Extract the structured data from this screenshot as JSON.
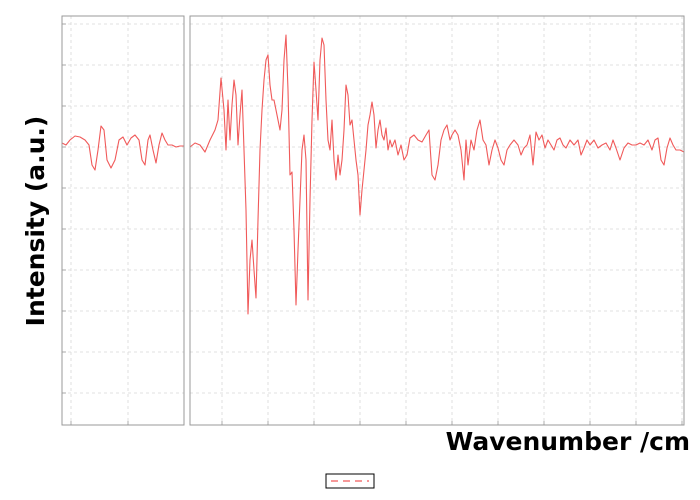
{
  "chart_data": [
    {
      "type": "line",
      "ylabel": "Intensity (a.u.)",
      "xlim": [
        0,
        122
      ],
      "xticks": [
        9,
        66
      ],
      "ylim": [
        0,
        409
      ],
      "yticks": [
        32,
        73,
        114,
        155,
        196,
        237,
        278,
        319,
        360,
        401
      ],
      "grid": true,
      "x": [
        0,
        4,
        8,
        13,
        18,
        23,
        27,
        30,
        33,
        36,
        39,
        42,
        45,
        49,
        53,
        57,
        61,
        65,
        69,
        73,
        77,
        80,
        83,
        86,
        88,
        91,
        94,
        97,
        100,
        103,
        106,
        110,
        114,
        118,
        122
      ],
      "series": [
        {
          "color": "#f05a5a",
          "values": [
            282,
            280,
            285,
            289,
            288,
            285,
            280,
            260,
            255,
            275,
            299,
            295,
            265,
            257,
            265,
            285,
            288,
            280,
            287,
            290,
            285,
            265,
            260,
            285,
            290,
            275,
            262,
            280,
            292,
            285,
            280,
            280,
            278,
            279,
            279
          ]
        }
      ]
    },
    {
      "type": "line",
      "xlabel": "Wavenumber /cm",
      "xlim": [
        0,
        494
      ],
      "xticks": [
        32,
        78,
        124,
        170,
        216,
        262,
        308,
        354,
        400,
        446,
        492
      ],
      "ylim": [
        0,
        409
      ],
      "yticks": [
        32,
        73,
        114,
        155,
        196,
        237,
        278,
        319,
        360,
        401
      ],
      "grid": true,
      "x": [
        0,
        5,
        10,
        15,
        20,
        25,
        28,
        31,
        34,
        36,
        38,
        40,
        42,
        44,
        46,
        48,
        50,
        52,
        54,
        56,
        58,
        60,
        62,
        64,
        66,
        68,
        70,
        72,
        74,
        76,
        78,
        80,
        82,
        84,
        86,
        88,
        90,
        92,
        94,
        96,
        98,
        100,
        102,
        104,
        106,
        108,
        110,
        112,
        114,
        116,
        118,
        120,
        122,
        124,
        126,
        128,
        130,
        132,
        134,
        136,
        138,
        140,
        142,
        144,
        146,
        148,
        150,
        152,
        154,
        156,
        158,
        160,
        162,
        164,
        166,
        168,
        170,
        172,
        174,
        176,
        178,
        180,
        182,
        184,
        186,
        188,
        190,
        192,
        194,
        196,
        198,
        200,
        202,
        205,
        208,
        211,
        214,
        217,
        220,
        224,
        228,
        232,
        236,
        239,
        242,
        245,
        248,
        251,
        254,
        257,
        260,
        262,
        265,
        268,
        271,
        274,
        276,
        278,
        281,
        284,
        287,
        290,
        293,
        296,
        299,
        302,
        305,
        308,
        311,
        314,
        317,
        320,
        324,
        328,
        331,
        334,
        337,
        340,
        343,
        346,
        349,
        352,
        355,
        358,
        361,
        364,
        367,
        370,
        373,
        376,
        380,
        384,
        388,
        391,
        394,
        397,
        400,
        404,
        408,
        412,
        416,
        420,
        423,
        426,
        430,
        434,
        438,
        442,
        446,
        450,
        454,
        458,
        462,
        465,
        468,
        471,
        474,
        477,
        480,
        483,
        486,
        490,
        494
      ],
      "series": [
        {
          "color": "#f05a5a",
          "values": [
            278,
            282,
            280,
            273,
            285,
            295,
            305,
            347,
            315,
            275,
            325,
            285,
            320,
            345,
            330,
            280,
            310,
            335,
            275,
            215,
            111,
            165,
            185,
            155,
            127,
            205,
            275,
            315,
            345,
            365,
            370,
            340,
            325,
            325,
            315,
            305,
            295,
            315,
            365,
            390,
            335,
            250,
            253,
            195,
            120,
            175,
            225,
            275,
            290,
            265,
            125,
            225,
            305,
            363,
            335,
            305,
            365,
            387,
            380,
            325,
            285,
            275,
            305,
            265,
            245,
            270,
            250,
            265,
            295,
            340,
            330,
            300,
            305,
            285,
            265,
            250,
            210,
            235,
            255,
            275,
            300,
            310,
            323,
            310,
            277,
            295,
            305,
            290,
            285,
            297,
            275,
            285,
            278,
            285,
            270,
            280,
            265,
            270,
            287,
            290,
            285,
            283,
            290,
            295,
            250,
            245,
            260,
            285,
            295,
            300,
            285,
            290,
            295,
            290,
            275,
            245,
            285,
            260,
            285,
            275,
            295,
            305,
            285,
            280,
            260,
            275,
            285,
            277,
            265,
            260,
            275,
            280,
            285,
            280,
            270,
            277,
            280,
            290,
            260,
            293,
            285,
            290,
            277,
            285,
            280,
            275,
            285,
            287,
            280,
            277,
            285,
            280,
            285,
            270,
            277,
            285,
            280,
            285,
            277,
            280,
            282,
            275,
            285,
            277,
            265,
            277,
            282,
            280,
            280,
            282,
            280,
            285,
            275,
            285,
            287,
            265,
            260,
            277,
            287,
            280,
            275,
            275,
            273
          ]
        }
      ]
    }
  ]
}
